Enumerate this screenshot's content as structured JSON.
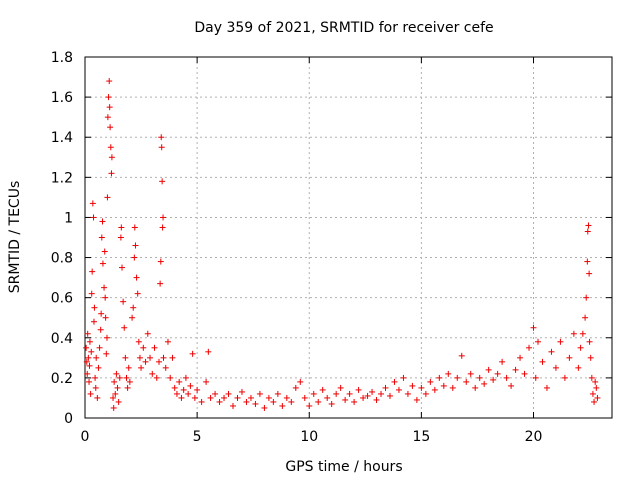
{
  "chart_data": {
    "type": "scatter",
    "title": "Day 359 of 2021, SRMTID for receiver cefe",
    "xlabel": "GPS time / hours",
    "ylabel": "SRMTID / TECUs",
    "xlim": [
      0,
      23.5
    ],
    "ylim": [
      0,
      1.8
    ],
    "xticks": [
      0,
      5,
      10,
      15,
      20
    ],
    "yticks": [
      0,
      0.2,
      0.4,
      0.6,
      0.8,
      1,
      1.2,
      1.4,
      1.6,
      1.8
    ],
    "ytick_labels": [
      "0",
      "0.2",
      "0.4",
      "0.6",
      "0.8",
      "1",
      "1.2",
      "1.4",
      "1.6",
      "1.8"
    ],
    "grid": true,
    "marker": "plus",
    "color": "#ee0000",
    "series": [
      {
        "name": "cefe",
        "points": [
          [
            0.05,
            0.35
          ],
          [
            0.08,
            0.28
          ],
          [
            0.1,
            0.22
          ],
          [
            0.12,
            0.42
          ],
          [
            0.15,
            0.3
          ],
          [
            0.18,
            0.18
          ],
          [
            0.2,
            0.26
          ],
          [
            0.22,
            0.38
          ],
          [
            0.25,
            0.12
          ],
          [
            0.28,
            0.33
          ],
          [
            0.3,
            0.62
          ],
          [
            0.32,
            0.73
          ],
          [
            0.35,
            1.07
          ],
          [
            0.38,
            1.0
          ],
          [
            0.4,
            0.48
          ],
          [
            0.42,
            0.55
          ],
          [
            0.45,
            0.2
          ],
          [
            0.48,
            0.15
          ],
          [
            0.5,
            0.3
          ],
          [
            0.55,
            0.1
          ],
          [
            0.6,
            0.25
          ],
          [
            0.65,
            0.35
          ],
          [
            0.7,
            0.44
          ],
          [
            0.72,
            0.52
          ],
          [
            0.75,
            0.9
          ],
          [
            0.78,
            0.98
          ],
          [
            0.8,
            0.77
          ],
          [
            0.85,
            0.65
          ],
          [
            0.88,
            0.83
          ],
          [
            0.9,
            0.6
          ],
          [
            0.92,
            0.5
          ],
          [
            0.95,
            0.32
          ],
          [
            0.98,
            0.4
          ],
          [
            1.0,
            1.1
          ],
          [
            1.02,
            1.5
          ],
          [
            1.05,
            1.6
          ],
          [
            1.08,
            1.68
          ],
          [
            1.1,
            1.55
          ],
          [
            1.12,
            1.45
          ],
          [
            1.15,
            1.35
          ],
          [
            1.18,
            1.22
          ],
          [
            1.2,
            1.3
          ],
          [
            1.25,
            0.1
          ],
          [
            1.28,
            0.05
          ],
          [
            1.3,
            0.18
          ],
          [
            1.35,
            0.12
          ],
          [
            1.4,
            0.22
          ],
          [
            1.45,
            0.15
          ],
          [
            1.5,
            0.08
          ],
          [
            1.55,
            0.2
          ],
          [
            1.6,
            0.9
          ],
          [
            1.62,
            0.95
          ],
          [
            1.65,
            0.75
          ],
          [
            1.7,
            0.58
          ],
          [
            1.75,
            0.45
          ],
          [
            1.8,
            0.3
          ],
          [
            1.85,
            0.2
          ],
          [
            1.9,
            0.15
          ],
          [
            1.95,
            0.25
          ],
          [
            2.0,
            0.18
          ],
          [
            2.1,
            0.5
          ],
          [
            2.15,
            0.55
          ],
          [
            2.2,
            0.8
          ],
          [
            2.22,
            0.95
          ],
          [
            2.25,
            0.86
          ],
          [
            2.3,
            0.7
          ],
          [
            2.35,
            0.62
          ],
          [
            2.4,
            0.38
          ],
          [
            2.45,
            0.3
          ],
          [
            2.5,
            0.25
          ],
          [
            2.6,
            0.35
          ],
          [
            2.7,
            0.28
          ],
          [
            2.8,
            0.42
          ],
          [
            2.9,
            0.3
          ],
          [
            3.0,
            0.22
          ],
          [
            3.1,
            0.35
          ],
          [
            3.2,
            0.2
          ],
          [
            3.3,
            0.28
          ],
          [
            3.35,
            0.67
          ],
          [
            3.38,
            0.78
          ],
          [
            3.4,
            1.4
          ],
          [
            3.42,
            1.35
          ],
          [
            3.44,
            1.18
          ],
          [
            3.46,
            0.95
          ],
          [
            3.48,
            1.0
          ],
          [
            3.5,
            0.3
          ],
          [
            3.6,
            0.25
          ],
          [
            3.7,
            0.38
          ],
          [
            3.8,
            0.2
          ],
          [
            3.9,
            0.3
          ],
          [
            4.0,
            0.15
          ],
          [
            4.1,
            0.12
          ],
          [
            4.2,
            0.18
          ],
          [
            4.3,
            0.1
          ],
          [
            4.4,
            0.14
          ],
          [
            4.5,
            0.2
          ],
          [
            4.6,
            0.12
          ],
          [
            4.7,
            0.16
          ],
          [
            4.8,
            0.32
          ],
          [
            4.9,
            0.1
          ],
          [
            5.0,
            0.14
          ],
          [
            5.2,
            0.08
          ],
          [
            5.4,
            0.18
          ],
          [
            5.5,
            0.33
          ],
          [
            5.6,
            0.1
          ],
          [
            5.8,
            0.12
          ],
          [
            6.0,
            0.08
          ],
          [
            6.2,
            0.1
          ],
          [
            6.4,
            0.12
          ],
          [
            6.6,
            0.06
          ],
          [
            6.8,
            0.1
          ],
          [
            7.0,
            0.13
          ],
          [
            7.2,
            0.08
          ],
          [
            7.4,
            0.1
          ],
          [
            7.6,
            0.07
          ],
          [
            7.8,
            0.12
          ],
          [
            8.0,
            0.05
          ],
          [
            8.2,
            0.1
          ],
          [
            8.4,
            0.08
          ],
          [
            8.6,
            0.12
          ],
          [
            8.8,
            0.06
          ],
          [
            9.0,
            0.1
          ],
          [
            9.2,
            0.08
          ],
          [
            9.4,
            0.15
          ],
          [
            9.6,
            0.18
          ],
          [
            9.8,
            0.1
          ],
          [
            10.0,
            0.06
          ],
          [
            10.2,
            0.12
          ],
          [
            10.4,
            0.08
          ],
          [
            10.6,
            0.14
          ],
          [
            10.8,
            0.1
          ],
          [
            11.0,
            0.07
          ],
          [
            11.2,
            0.12
          ],
          [
            11.4,
            0.15
          ],
          [
            11.6,
            0.09
          ],
          [
            11.8,
            0.12
          ],
          [
            12.0,
            0.08
          ],
          [
            12.2,
            0.14
          ],
          [
            12.4,
            0.1
          ],
          [
            12.6,
            0.11
          ],
          [
            12.8,
            0.13
          ],
          [
            13.0,
            0.09
          ],
          [
            13.2,
            0.12
          ],
          [
            13.4,
            0.15
          ],
          [
            13.6,
            0.11
          ],
          [
            13.8,
            0.18
          ],
          [
            14.0,
            0.14
          ],
          [
            14.2,
            0.2
          ],
          [
            14.4,
            0.12
          ],
          [
            14.6,
            0.16
          ],
          [
            14.8,
            0.09
          ],
          [
            15.0,
            0.15
          ],
          [
            15.2,
            0.12
          ],
          [
            15.4,
            0.18
          ],
          [
            15.6,
            0.14
          ],
          [
            15.8,
            0.2
          ],
          [
            16.0,
            0.16
          ],
          [
            16.2,
            0.22
          ],
          [
            16.4,
            0.15
          ],
          [
            16.6,
            0.2
          ],
          [
            16.8,
            0.31
          ],
          [
            17.0,
            0.18
          ],
          [
            17.2,
            0.22
          ],
          [
            17.4,
            0.15
          ],
          [
            17.6,
            0.2
          ],
          [
            17.8,
            0.17
          ],
          [
            18.0,
            0.24
          ],
          [
            18.2,
            0.19
          ],
          [
            18.4,
            0.22
          ],
          [
            18.6,
            0.28
          ],
          [
            18.8,
            0.2
          ],
          [
            19.0,
            0.16
          ],
          [
            19.2,
            0.24
          ],
          [
            19.4,
            0.3
          ],
          [
            19.6,
            0.22
          ],
          [
            19.8,
            0.35
          ],
          [
            20.0,
            0.45
          ],
          [
            20.1,
            0.2
          ],
          [
            20.2,
            0.38
          ],
          [
            20.4,
            0.28
          ],
          [
            20.6,
            0.15
          ],
          [
            20.8,
            0.33
          ],
          [
            21.0,
            0.25
          ],
          [
            21.2,
            0.38
          ],
          [
            21.4,
            0.2
          ],
          [
            21.6,
            0.3
          ],
          [
            21.8,
            0.42
          ],
          [
            22.0,
            0.25
          ],
          [
            22.1,
            0.35
          ],
          [
            22.2,
            0.42
          ],
          [
            22.3,
            0.5
          ],
          [
            22.35,
            0.6
          ],
          [
            22.4,
            0.78
          ],
          [
            22.42,
            0.93
          ],
          [
            22.45,
            0.96
          ],
          [
            22.48,
            0.72
          ],
          [
            22.5,
            0.38
          ],
          [
            22.55,
            0.3
          ],
          [
            22.6,
            0.2
          ],
          [
            22.65,
            0.12
          ],
          [
            22.7,
            0.08
          ],
          [
            22.75,
            0.18
          ],
          [
            22.8,
            0.15
          ],
          [
            22.85,
            0.1
          ]
        ]
      }
    ]
  }
}
